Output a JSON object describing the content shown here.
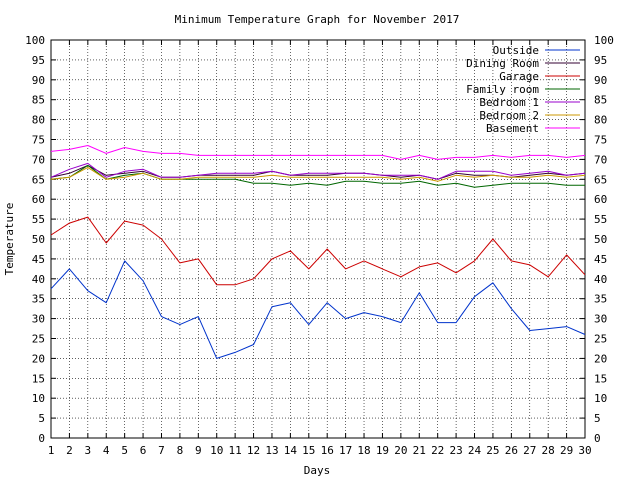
{
  "chart_data": {
    "type": "line",
    "title": "Minimum Temperature Graph for November 2017",
    "xlabel": "Days",
    "ylabel": "Temperature",
    "xlim": [
      1,
      30
    ],
    "ylim": [
      0,
      100
    ],
    "y_ticks": [
      0,
      5,
      10,
      15,
      20,
      25,
      30,
      35,
      40,
      45,
      50,
      55,
      60,
      65,
      70,
      75,
      80,
      85,
      90,
      95,
      100
    ],
    "x_ticks": [
      1,
      2,
      3,
      4,
      5,
      6,
      7,
      8,
      9,
      10,
      11,
      12,
      13,
      14,
      15,
      16,
      17,
      18,
      19,
      20,
      21,
      22,
      23,
      24,
      25,
      26,
      27,
      28,
      29,
      30
    ],
    "grid": true,
    "legend_position": "top-right",
    "x": [
      1,
      2,
      3,
      4,
      5,
      6,
      7,
      8,
      9,
      10,
      11,
      12,
      13,
      14,
      15,
      16,
      17,
      18,
      19,
      20,
      21,
      22,
      23,
      24,
      25,
      26,
      27,
      28,
      29,
      30
    ],
    "series": [
      {
        "name": "Outside",
        "color": "#0033cc",
        "values": [
          37.5,
          42.5,
          37,
          34,
          44.5,
          39.5,
          30.5,
          28.5,
          30.5,
          20,
          21.5,
          23.5,
          33,
          34,
          28.5,
          34,
          30,
          31.5,
          30.5,
          29,
          36.5,
          29,
          29,
          35.5,
          39,
          32.5,
          27,
          27.5,
          28,
          26
        ]
      },
      {
        "name": "Dining Room",
        "color": "#330033",
        "values": [
          65.5,
          66.5,
          68.5,
          66,
          66.5,
          67,
          65.5,
          65.5,
          66,
          66,
          66,
          66,
          67,
          66,
          66,
          66,
          66.5,
          66.5,
          66,
          65.5,
          66,
          65,
          66.5,
          66,
          66,
          65.5,
          66,
          66.5,
          66,
          66.5
        ]
      },
      {
        "name": "Garage",
        "color": "#cc0000",
        "values": [
          51,
          54,
          55.5,
          49,
          54.5,
          53.5,
          50,
          44,
          45,
          38.5,
          38.5,
          40,
          45,
          47,
          42.5,
          47.5,
          42.5,
          44.5,
          42.5,
          40.5,
          43,
          44,
          41.5,
          44.5,
          50,
          44.5,
          43.5,
          40.5,
          46,
          41
        ]
      },
      {
        "name": "Family room",
        "color": "#006600",
        "values": [
          65,
          65.5,
          68.5,
          65,
          66,
          66.5,
          65,
          65,
          65,
          65,
          65,
          64,
          64,
          63.5,
          64,
          63.5,
          64.5,
          64.5,
          64,
          64,
          64.5,
          63.5,
          64,
          63,
          63.5,
          64,
          64,
          64,
          63.5,
          63.5
        ]
      },
      {
        "name": "Bedroom 1",
        "color": "#9900cc",
        "values": [
          65.5,
          67.5,
          69,
          65.5,
          67,
          67.5,
          65.5,
          65.5,
          66,
          66.5,
          66.5,
          66.5,
          67,
          66,
          66.5,
          66.5,
          66.5,
          66.5,
          66,
          66,
          66,
          65,
          67,
          67,
          67,
          66,
          66.5,
          67,
          66,
          66.5
        ]
      },
      {
        "name": "Bedroom 2",
        "color": "#cc9900",
        "values": [
          65,
          65.5,
          68,
          65,
          65.5,
          66.5,
          65,
          65,
          65.5,
          65.5,
          65.5,
          65.5,
          66,
          65.5,
          65.5,
          65.5,
          65.5,
          65.5,
          65.5,
          65,
          65.5,
          64.5,
          66,
          65.5,
          66,
          65.5,
          65.5,
          66,
          65.5,
          66
        ]
      },
      {
        "name": "Basement",
        "color": "#ff00ff",
        "values": [
          72,
          72.5,
          73.5,
          71.5,
          73,
          72,
          71.5,
          71.5,
          71,
          71,
          71,
          71,
          71,
          71,
          71,
          71,
          71,
          71,
          71,
          70,
          71,
          70,
          70.5,
          70.5,
          71,
          70.5,
          71,
          71,
          70.5,
          71
        ]
      }
    ]
  }
}
